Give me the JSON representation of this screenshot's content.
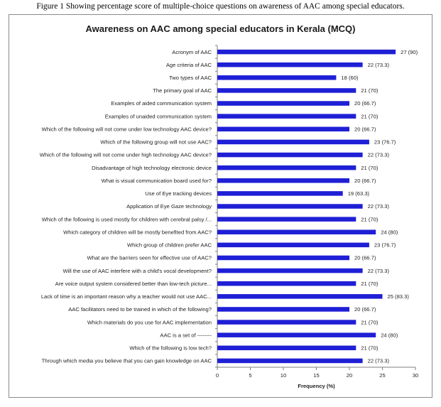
{
  "caption": "Figure 1 Showing percentage score of multiple-choice questions on awareness of AAC among special educators.",
  "chart_data": {
    "type": "bar",
    "orientation": "horizontal",
    "title": "Awareness on AAC among special educators in Kerala (MCQ)",
    "xlabel": "Frequency (%)",
    "ylabel": "",
    "xlim": [
      0,
      30
    ],
    "xticks": [
      0,
      5,
      10,
      15,
      20,
      25,
      30
    ],
    "grid": false,
    "bar_color": "#1f1fd6",
    "categories": [
      "Acronym of AAC",
      "Age criteria of AAC",
      "Two types of AAC",
      "The primary goal of AAC",
      "Examples of aided communication system",
      "Examples of unaided communication system",
      "Which of the following will not come under low technology AAC device?",
      "Which of the following group will not use AAC?",
      "Which of the following will not come under high technology AAC device?",
      "Disadvantage of high technology electronic device",
      "What is visual communication board used for?",
      "Use of Eye tracking devices",
      "Application of Eye Gaze technology",
      "Which of the following is used mostly for children with cerebral palsy /...",
      "Which category of children will be mostly benefited from AAC?",
      "Which group of children prefer AAC",
      "What are the barriers seen for effective use of AAC?",
      "Will the use of AAC interfere with a child's vocal development?",
      "Are voice output system considered better than low-tech picture...",
      "Lack of time is an important reason why a teacher would not use AAC...",
      "AAC facilitators need to be trained in which of the following?",
      "Which materials do you use for AAC implementation",
      "AAC is a set of --------",
      "Which of the following is low tech?",
      "Through which media you believe that you can gain knowledge on AAC"
    ],
    "values": [
      27,
      22,
      18,
      21,
      20,
      21,
      20,
      23,
      22,
      21,
      20,
      19,
      22,
      21,
      24,
      23,
      20,
      22,
      21,
      25,
      20,
      21,
      24,
      21,
      22
    ],
    "data_labels": [
      "27 (90)",
      "22 (73.3)",
      "18 (60)",
      "21 (70)",
      "20 (66.7)",
      "21 (70)",
      "20 (66.7)",
      "23 (76.7)",
      "22 (73.3)",
      "21 (70)",
      "20 (66.7)",
      "19 (63.3)",
      "22 (73.3)",
      "21 (70)",
      "24 (80)",
      "23 (76.7)",
      "20 (66.7)",
      "22 (73.3)",
      "21 (70)",
      "25 (83.3)",
      "20 (66.7)",
      "21 (70)",
      "24 (80)",
      "21 (70)",
      "22 (73.3)"
    ]
  }
}
